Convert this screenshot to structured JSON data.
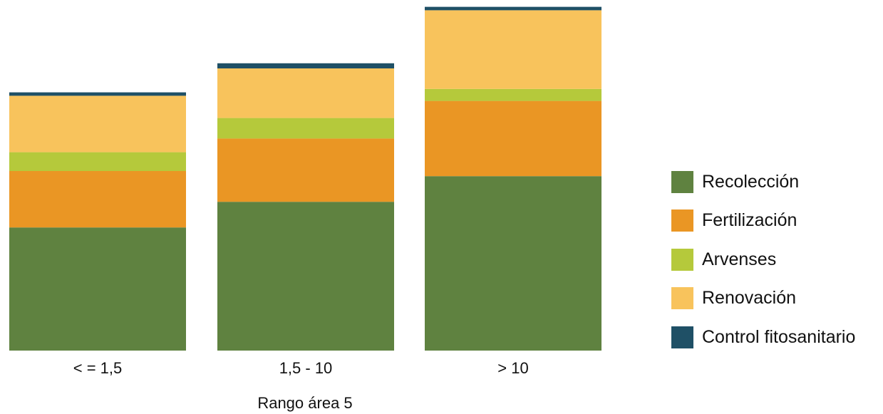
{
  "chart_data": {
    "type": "bar",
    "stacked": true,
    "xlabel": "Rango área 5",
    "ylabel": "",
    "ylim": [
      0,
      100
    ],
    "grid": false,
    "legend_position": "right",
    "categories": [
      "< = 1,5",
      "1,5 - 10",
      "> 10"
    ],
    "series": [
      {
        "name": "Recolección",
        "color": "#5f8240",
        "values": [
          36,
          43.5,
          51
        ]
      },
      {
        "name": "Fertilización",
        "color": "#ea9624",
        "values": [
          16.5,
          18.5,
          22
        ]
      },
      {
        "name": "Arvenses",
        "color": "#b5c93b",
        "values": [
          5.5,
          6,
          3.5
        ]
      },
      {
        "name": "Renovación",
        "color": "#f8c35c",
        "values": [
          16.5,
          14.5,
          23
        ]
      },
      {
        "name": "Control fitosanitario",
        "color": "#1f5066",
        "values": [
          1,
          1.5,
          1
        ]
      }
    ]
  }
}
